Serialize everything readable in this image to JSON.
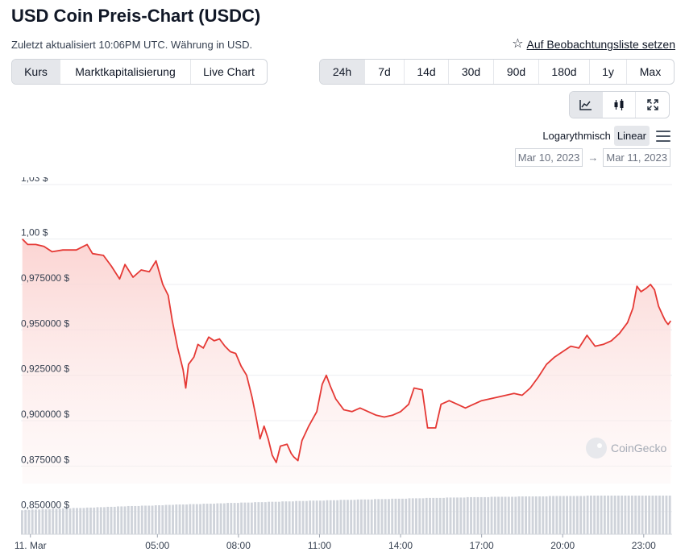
{
  "header": {
    "title": "USD Coin Preis-Chart (USDC)",
    "subtitle": "Zuletzt aktualisiert 10:06PM UTC. Währung in USD.",
    "watchlist_label": "Auf Beobachtungsliste setzen"
  },
  "view_tabs": [
    "Kurs",
    "Marktkapitalisierung",
    "Live Chart"
  ],
  "range_tabs": [
    "24h",
    "7d",
    "14d",
    "30d",
    "90d",
    "180d",
    "1y",
    "Max"
  ],
  "scale": {
    "log_label": "Logarythmisch",
    "linear_label": "Linear",
    "active": "Linear"
  },
  "date_range": {
    "from": "Mar 10, 2023",
    "arrow": "→",
    "to": "Mar 11, 2023"
  },
  "watermark": "CoinGecko",
  "colors": {
    "line": "#e53935",
    "fill": "#fde2e1",
    "volume": "#cfd3da",
    "grid": "#eceef1",
    "active_tab": "#e5e7eb"
  },
  "chart_data": {
    "type": "area",
    "x_unit": "hour",
    "y_ticks": [
      {
        "value": 1.03,
        "label": "1,03 $"
      },
      {
        "value": 1.0,
        "label": "1,00 $"
      },
      {
        "value": 0.975,
        "label": "0,975000 $"
      },
      {
        "value": 0.95,
        "label": "0,950000 $"
      },
      {
        "value": 0.925,
        "label": "0,925000 $"
      },
      {
        "value": 0.9,
        "label": "0,900000 $"
      },
      {
        "value": 0.875,
        "label": "0,875000 $"
      },
      {
        "value": 0.85,
        "label": "0,850000 $"
      }
    ],
    "x_ticks": [
      {
        "hour": 0.3,
        "label": "11. Mar"
      },
      {
        "hour": 5,
        "label": "05:00"
      },
      {
        "hour": 8,
        "label": "08:00"
      },
      {
        "hour": 11,
        "label": "11:00"
      },
      {
        "hour": 14,
        "label": "14:00"
      },
      {
        "hour": 17,
        "label": "17:00"
      },
      {
        "hour": 20,
        "label": "20:00"
      },
      {
        "hour": 23,
        "label": "23:00"
      }
    ],
    "x_range": [
      -0.05,
      24.05
    ],
    "y_range": [
      0.845,
      1.034
    ],
    "price": [
      [
        0.0,
        1.0
      ],
      [
        0.2,
        0.997
      ],
      [
        0.5,
        0.997
      ],
      [
        0.8,
        0.996
      ],
      [
        1.1,
        0.993
      ],
      [
        1.5,
        0.994
      ],
      [
        2.0,
        0.994
      ],
      [
        2.4,
        0.997
      ],
      [
        2.6,
        0.992
      ],
      [
        3.0,
        0.991
      ],
      [
        3.3,
        0.985
      ],
      [
        3.6,
        0.978
      ],
      [
        3.8,
        0.986
      ],
      [
        4.1,
        0.979
      ],
      [
        4.4,
        0.983
      ],
      [
        4.7,
        0.982
      ],
      [
        4.95,
        0.988
      ],
      [
        5.2,
        0.975
      ],
      [
        5.4,
        0.969
      ],
      [
        5.55,
        0.955
      ],
      [
        5.75,
        0.94
      ],
      [
        5.95,
        0.928
      ],
      [
        6.05,
        0.918
      ],
      [
        6.15,
        0.931
      ],
      [
        6.35,
        0.935
      ],
      [
        6.5,
        0.942
      ],
      [
        6.7,
        0.94
      ],
      [
        6.9,
        0.946
      ],
      [
        7.1,
        0.944
      ],
      [
        7.3,
        0.945
      ],
      [
        7.5,
        0.941
      ],
      [
        7.7,
        0.938
      ],
      [
        7.9,
        0.937
      ],
      [
        8.1,
        0.93
      ],
      [
        8.3,
        0.925
      ],
      [
        8.5,
        0.913
      ],
      [
        8.65,
        0.902
      ],
      [
        8.8,
        0.89
      ],
      [
        8.95,
        0.897
      ],
      [
        9.1,
        0.89
      ],
      [
        9.25,
        0.881
      ],
      [
        9.4,
        0.877
      ],
      [
        9.55,
        0.886
      ],
      [
        9.8,
        0.887
      ],
      [
        9.95,
        0.882
      ],
      [
        10.05,
        0.88
      ],
      [
        10.2,
        0.878
      ],
      [
        10.35,
        0.889
      ],
      [
        10.6,
        0.897
      ],
      [
        10.9,
        0.905
      ],
      [
        11.1,
        0.92
      ],
      [
        11.25,
        0.925
      ],
      [
        11.4,
        0.919
      ],
      [
        11.6,
        0.912
      ],
      [
        11.9,
        0.906
      ],
      [
        12.2,
        0.905
      ],
      [
        12.5,
        0.907
      ],
      [
        12.8,
        0.905
      ],
      [
        13.1,
        0.903
      ],
      [
        13.4,
        0.902
      ],
      [
        13.7,
        0.903
      ],
      [
        14.0,
        0.905
      ],
      [
        14.3,
        0.909
      ],
      [
        14.5,
        0.918
      ],
      [
        14.8,
        0.917
      ],
      [
        15.0,
        0.896
      ],
      [
        15.3,
        0.896
      ],
      [
        15.5,
        0.909
      ],
      [
        15.8,
        0.911
      ],
      [
        16.1,
        0.909
      ],
      [
        16.4,
        0.907
      ],
      [
        16.7,
        0.909
      ],
      [
        17.0,
        0.911
      ],
      [
        17.3,
        0.912
      ],
      [
        17.6,
        0.913
      ],
      [
        17.9,
        0.914
      ],
      [
        18.2,
        0.915
      ],
      [
        18.5,
        0.914
      ],
      [
        18.8,
        0.918
      ],
      [
        19.1,
        0.924
      ],
      [
        19.4,
        0.931
      ],
      [
        19.7,
        0.935
      ],
      [
        20.0,
        0.938
      ],
      [
        20.3,
        0.941
      ],
      [
        20.6,
        0.94
      ],
      [
        20.9,
        0.947
      ],
      [
        21.2,
        0.941
      ],
      [
        21.5,
        0.942
      ],
      [
        21.8,
        0.944
      ],
      [
        22.1,
        0.948
      ],
      [
        22.4,
        0.954
      ],
      [
        22.6,
        0.962
      ],
      [
        22.75,
        0.974
      ],
      [
        22.9,
        0.971
      ],
      [
        23.1,
        0.973
      ],
      [
        23.25,
        0.975
      ],
      [
        23.4,
        0.972
      ],
      [
        23.55,
        0.963
      ],
      [
        23.7,
        0.958
      ],
      [
        23.8,
        0.955
      ],
      [
        23.9,
        0.953
      ],
      [
        24.0,
        0.955
      ]
    ],
    "volume": [
      0.62,
      0.63,
      0.63,
      0.64,
      0.64,
      0.64,
      0.65,
      0.65,
      0.65,
      0.66,
      0.66,
      0.66,
      0.67,
      0.67,
      0.67,
      0.68,
      0.68,
      0.68,
      0.68,
      0.69,
      0.69,
      0.69,
      0.7,
      0.7,
      0.7,
      0.71,
      0.71,
      0.71,
      0.72,
      0.72,
      0.72,
      0.73,
      0.73,
      0.73,
      0.73,
      0.74,
      0.74,
      0.74,
      0.74,
      0.75,
      0.75,
      0.75,
      0.76,
      0.76,
      0.76,
      0.77,
      0.77,
      0.77,
      0.77,
      0.78,
      0.78,
      0.78,
      0.78,
      0.79,
      0.79,
      0.79,
      0.79,
      0.8,
      0.8,
      0.8,
      0.81,
      0.81,
      0.81,
      0.81,
      0.82,
      0.82,
      0.82,
      0.82,
      0.83,
      0.83,
      0.83,
      0.83,
      0.84,
      0.84,
      0.84,
      0.84,
      0.85,
      0.85,
      0.85,
      0.85,
      0.86,
      0.86,
      0.86,
      0.86,
      0.87,
      0.87,
      0.87,
      0.87,
      0.87,
      0.88,
      0.88,
      0.88,
      0.88,
      0.89,
      0.89,
      0.89,
      0.89,
      0.89,
      0.9,
      0.9,
      0.9,
      0.9,
      0.9,
      0.91,
      0.91,
      0.91,
      0.91,
      0.91,
      0.92,
      0.92,
      0.92,
      0.92,
      0.92,
      0.93,
      0.93,
      0.93,
      0.93,
      0.93,
      0.94,
      0.94,
      0.94,
      0.94,
      0.94,
      0.94,
      0.95,
      0.95,
      0.95,
      0.95,
      0.95,
      0.95,
      0.96,
      0.96,
      0.96,
      0.96,
      0.96,
      0.96,
      0.96,
      0.97,
      0.97,
      0.97,
      0.97,
      0.97,
      0.97,
      0.97,
      0.97,
      0.98,
      0.98,
      0.98,
      0.98,
      0.98,
      0.98,
      0.98,
      0.98,
      0.98,
      0.99,
      0.99,
      0.99,
      0.99,
      0.99,
      0.99,
      0.99,
      0.99,
      0.99,
      0.99,
      0.99,
      1.0,
      1.0,
      1.0,
      1.0,
      1.0,
      1.0,
      1.0,
      1.0,
      1.0,
      1.0,
      1.0,
      1.0,
      1.0,
      1.0,
      1.0,
      1.0,
      1.0,
      1.0,
      1.0,
      1.0,
      1.0,
      1.0,
      1.0,
      1.0,
      1.0
    ]
  }
}
